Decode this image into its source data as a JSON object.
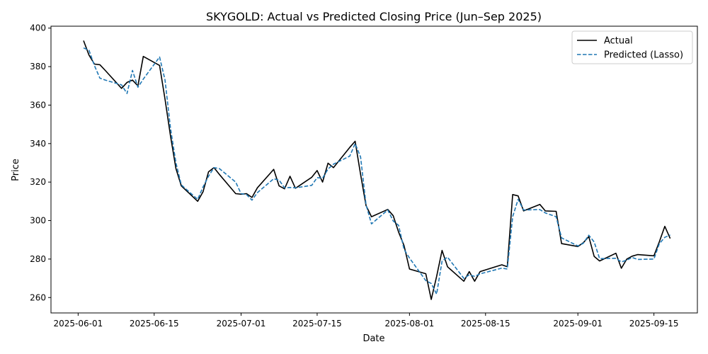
{
  "chart_data": {
    "type": "line",
    "title": "SKYGOLD: Actual vs Predicted Closing Price (Jun–Sep 2025)",
    "xlabel": "Date",
    "ylabel": "Price",
    "x_range": [
      "2025-05-27",
      "2025-09-23"
    ],
    "ylim": [
      252,
      401
    ],
    "x_ticks": [
      "2025-06-01",
      "2025-06-15",
      "2025-07-01",
      "2025-07-15",
      "2025-08-01",
      "2025-08-15",
      "2025-09-01",
      "2025-09-15"
    ],
    "y_ticks": [
      260,
      280,
      300,
      320,
      340,
      360,
      380,
      400
    ],
    "grid": false,
    "legend_position": "top-right",
    "series": [
      {
        "name": "Actual",
        "color": "#000000",
        "style": "solid",
        "x": [
          "2025-06-02",
          "2025-06-03",
          "2025-06-04",
          "2025-06-05",
          "2025-06-06",
          "2025-06-09",
          "2025-06-10",
          "2025-06-11",
          "2025-06-12",
          "2025-06-13",
          "2025-06-16",
          "2025-06-17",
          "2025-06-18",
          "2025-06-19",
          "2025-06-20",
          "2025-06-23",
          "2025-06-24",
          "2025-06-25",
          "2025-06-26",
          "2025-06-27",
          "2025-06-30",
          "2025-07-01",
          "2025-07-02",
          "2025-07-03",
          "2025-07-04",
          "2025-07-07",
          "2025-07-08",
          "2025-07-09",
          "2025-07-10",
          "2025-07-11",
          "2025-07-14",
          "2025-07-15",
          "2025-07-16",
          "2025-07-17",
          "2025-07-18",
          "2025-07-21",
          "2025-07-22",
          "2025-07-23",
          "2025-07-24",
          "2025-07-25",
          "2025-07-28",
          "2025-07-29",
          "2025-07-30",
          "2025-07-31",
          "2025-08-01",
          "2025-08-04",
          "2025-08-05",
          "2025-08-06",
          "2025-08-07",
          "2025-08-08",
          "2025-08-11",
          "2025-08-12",
          "2025-08-13",
          "2025-08-14",
          "2025-08-18",
          "2025-08-19",
          "2025-08-20",
          "2025-08-21",
          "2025-08-22",
          "2025-08-25",
          "2025-08-26",
          "2025-08-28",
          "2025-08-29",
          "2025-09-01",
          "2025-09-02",
          "2025-09-03",
          "2025-09-04",
          "2025-09-05",
          "2025-09-08",
          "2025-09-09",
          "2025-09-10",
          "2025-09-11",
          "2025-09-12",
          "2025-09-15",
          "2025-09-16",
          "2025-09-17",
          "2025-09-18"
        ],
        "values": [
          393.5,
          386,
          381.3,
          381,
          378,
          368.7,
          371.8,
          373,
          370,
          385.3,
          380.6,
          363,
          344,
          327,
          318,
          310,
          315,
          325.3,
          327.5,
          324,
          314,
          313.7,
          314,
          312,
          317,
          326.6,
          318,
          316.5,
          323,
          316.8,
          322.5,
          326,
          320,
          329.8,
          327.5,
          338,
          341.2,
          324,
          307.8,
          302,
          305.8,
          302.5,
          294,
          287,
          274.8,
          272.4,
          259,
          271,
          284.5,
          276,
          268.5,
          273.5,
          268.5,
          273.5,
          277,
          276,
          313.5,
          312.8,
          305,
          308.4,
          305,
          304.8,
          288,
          286.5,
          288.5,
          291.7,
          281.4,
          279,
          283,
          275.2,
          280,
          281.5,
          282.3,
          281.7,
          289,
          297,
          290.7
        ]
      },
      {
        "name": "Predicted (Lasso)",
        "color": "#1f77b4",
        "style": "dashed",
        "x": [
          "2025-06-02",
          "2025-06-03",
          "2025-06-04",
          "2025-06-05",
          "2025-06-06",
          "2025-06-09",
          "2025-06-10",
          "2025-06-11",
          "2025-06-12",
          "2025-06-13",
          "2025-06-16",
          "2025-06-17",
          "2025-06-18",
          "2025-06-19",
          "2025-06-20",
          "2025-06-23",
          "2025-06-24",
          "2025-06-25",
          "2025-06-26",
          "2025-06-27",
          "2025-06-30",
          "2025-07-01",
          "2025-07-02",
          "2025-07-03",
          "2025-07-04",
          "2025-07-07",
          "2025-07-08",
          "2025-07-09",
          "2025-07-10",
          "2025-07-11",
          "2025-07-14",
          "2025-07-15",
          "2025-07-16",
          "2025-07-17",
          "2025-07-18",
          "2025-07-21",
          "2025-07-22",
          "2025-07-23",
          "2025-07-24",
          "2025-07-25",
          "2025-07-28",
          "2025-07-29",
          "2025-07-30",
          "2025-07-31",
          "2025-08-01",
          "2025-08-04",
          "2025-08-05",
          "2025-08-06",
          "2025-08-07",
          "2025-08-08",
          "2025-08-11",
          "2025-08-12",
          "2025-08-13",
          "2025-08-14",
          "2025-08-18",
          "2025-08-19",
          "2025-08-20",
          "2025-08-21",
          "2025-08-22",
          "2025-08-25",
          "2025-08-26",
          "2025-08-28",
          "2025-08-29",
          "2025-09-01",
          "2025-09-02",
          "2025-09-03",
          "2025-09-04",
          "2025-09-05",
          "2025-09-08",
          "2025-09-09",
          "2025-09-10",
          "2025-09-11",
          "2025-09-12",
          "2025-09-15",
          "2025-09-16",
          "2025-09-17",
          "2025-09-18"
        ],
        "values": [
          389.7,
          388.5,
          380.5,
          374,
          373,
          370.5,
          366,
          378,
          369.3,
          373.5,
          385,
          373,
          348,
          330,
          318.5,
          311,
          317.5,
          323,
          327.5,
          327,
          320,
          314,
          313.5,
          310.6,
          314.5,
          321.7,
          321,
          317,
          317.2,
          317,
          318.3,
          322.3,
          322,
          326.8,
          329.3,
          333.5,
          340,
          333,
          308.2,
          298.3,
          305.5,
          299.8,
          297.5,
          285,
          280.5,
          268.8,
          267.3,
          261.8,
          279,
          281,
          270,
          271.8,
          271,
          272.3,
          275.3,
          274.8,
          302,
          311,
          305.5,
          305.7,
          304,
          302,
          291,
          286.8,
          288.2,
          292.4,
          288.9,
          280.2,
          280.4,
          278.5,
          279.5,
          280.8,
          279.8,
          280,
          288,
          291.3,
          292.5
        ]
      }
    ]
  }
}
